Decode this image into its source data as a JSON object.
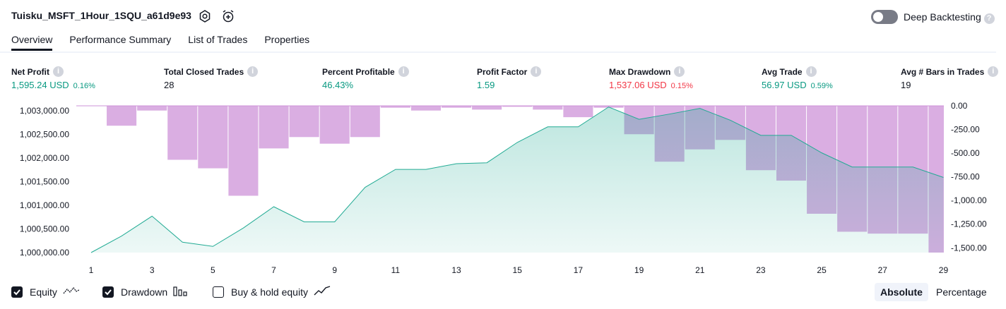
{
  "header": {
    "strategy_name": "Tuisku_MSFT_1Hour_1SQU_a61d9e93",
    "deep_backtesting_label": "Deep Backtesting",
    "deep_backtesting_enabled": false
  },
  "tabs": [
    {
      "label": "Overview",
      "active": true
    },
    {
      "label": "Performance Summary",
      "active": false
    },
    {
      "label": "List of Trades",
      "active": false
    },
    {
      "label": "Properties",
      "active": false
    }
  ],
  "metrics": [
    {
      "label": "Net Profit",
      "value": "1,595.24 USD",
      "percent": "0.16%",
      "color": "#089981"
    },
    {
      "label": "Total Closed Trades",
      "value": "28",
      "percent": "",
      "color": "#131722"
    },
    {
      "label": "Percent Profitable",
      "value": "46.43%",
      "percent": "",
      "color": "#089981"
    },
    {
      "label": "Profit Factor",
      "value": "1.59",
      "percent": "",
      "color": "#089981"
    },
    {
      "label": "Max Drawdown",
      "value": "1,537.06 USD",
      "percent": "0.15%",
      "color": "#f23645"
    },
    {
      "label": "Avg Trade",
      "value": "56.97 USD",
      "percent": "0.59%",
      "color": "#089981"
    },
    {
      "label": "Avg # Bars in Trades",
      "value": "19",
      "percent": "",
      "color": "#131722"
    }
  ],
  "chart_data": {
    "type": "area",
    "x": [
      1,
      2,
      3,
      4,
      5,
      6,
      7,
      8,
      9,
      10,
      11,
      12,
      13,
      14,
      15,
      16,
      17,
      18,
      19,
      20,
      21,
      22,
      23,
      24,
      25,
      26,
      27,
      28,
      29
    ],
    "x_tick_labels": [
      "1",
      "3",
      "5",
      "7",
      "9",
      "11",
      "13",
      "15",
      "17",
      "19",
      "21",
      "23",
      "25",
      "27",
      "29"
    ],
    "left_axis": {
      "ticks": [
        "1,003,000.00",
        "1,002,500.00",
        "1,002,000.00",
        "1,001,500.00",
        "1,001,000.00",
        "1,000,500.00",
        "1,000,000.00"
      ],
      "ylim": [
        1000000,
        1003000
      ]
    },
    "right_axis": {
      "ticks": [
        "0.00",
        "-250.00",
        "-500.00",
        "-750.00",
        "-1,000.00",
        "-1,250.00",
        "-1,500.00"
      ],
      "ylim": [
        -1550,
        0
      ]
    },
    "series": [
      {
        "name": "Equity",
        "type": "area",
        "axis": "left",
        "color": "#22ab94",
        "values": [
          1000000,
          1000350,
          1000770,
          1000220,
          1000130,
          1000520,
          1000970,
          1000650,
          1000650,
          1001380,
          1001760,
          1001760,
          1001880,
          1001900,
          1002330,
          1002660,
          1002660,
          1003080,
          1002820,
          1002930,
          1003050,
          1002800,
          1002480,
          1002480,
          1002110,
          1001810,
          1001810,
          1001810,
          1001590
        ]
      },
      {
        "name": "Drawdown",
        "type": "bar",
        "axis": "right",
        "color": "#ce93d8",
        "values": [
          0,
          -210,
          -50,
          -570,
          -660,
          -950,
          -450,
          -330,
          -400,
          -330,
          -20,
          -50,
          -20,
          -40,
          -10,
          -40,
          -120,
          -20,
          -300,
          -590,
          -460,
          -360,
          -680,
          -790,
          -1140,
          -1330,
          -1350,
          -1350,
          -1550
        ]
      }
    ]
  },
  "legend": {
    "equity": {
      "label": "Equity",
      "checked": true
    },
    "drawdown": {
      "label": "Drawdown",
      "checked": true
    },
    "buy_hold": {
      "label": "Buy & hold equity",
      "checked": false
    }
  },
  "view_mode": {
    "absolute": "Absolute",
    "percentage": "Percentage",
    "selected": "Absolute"
  }
}
